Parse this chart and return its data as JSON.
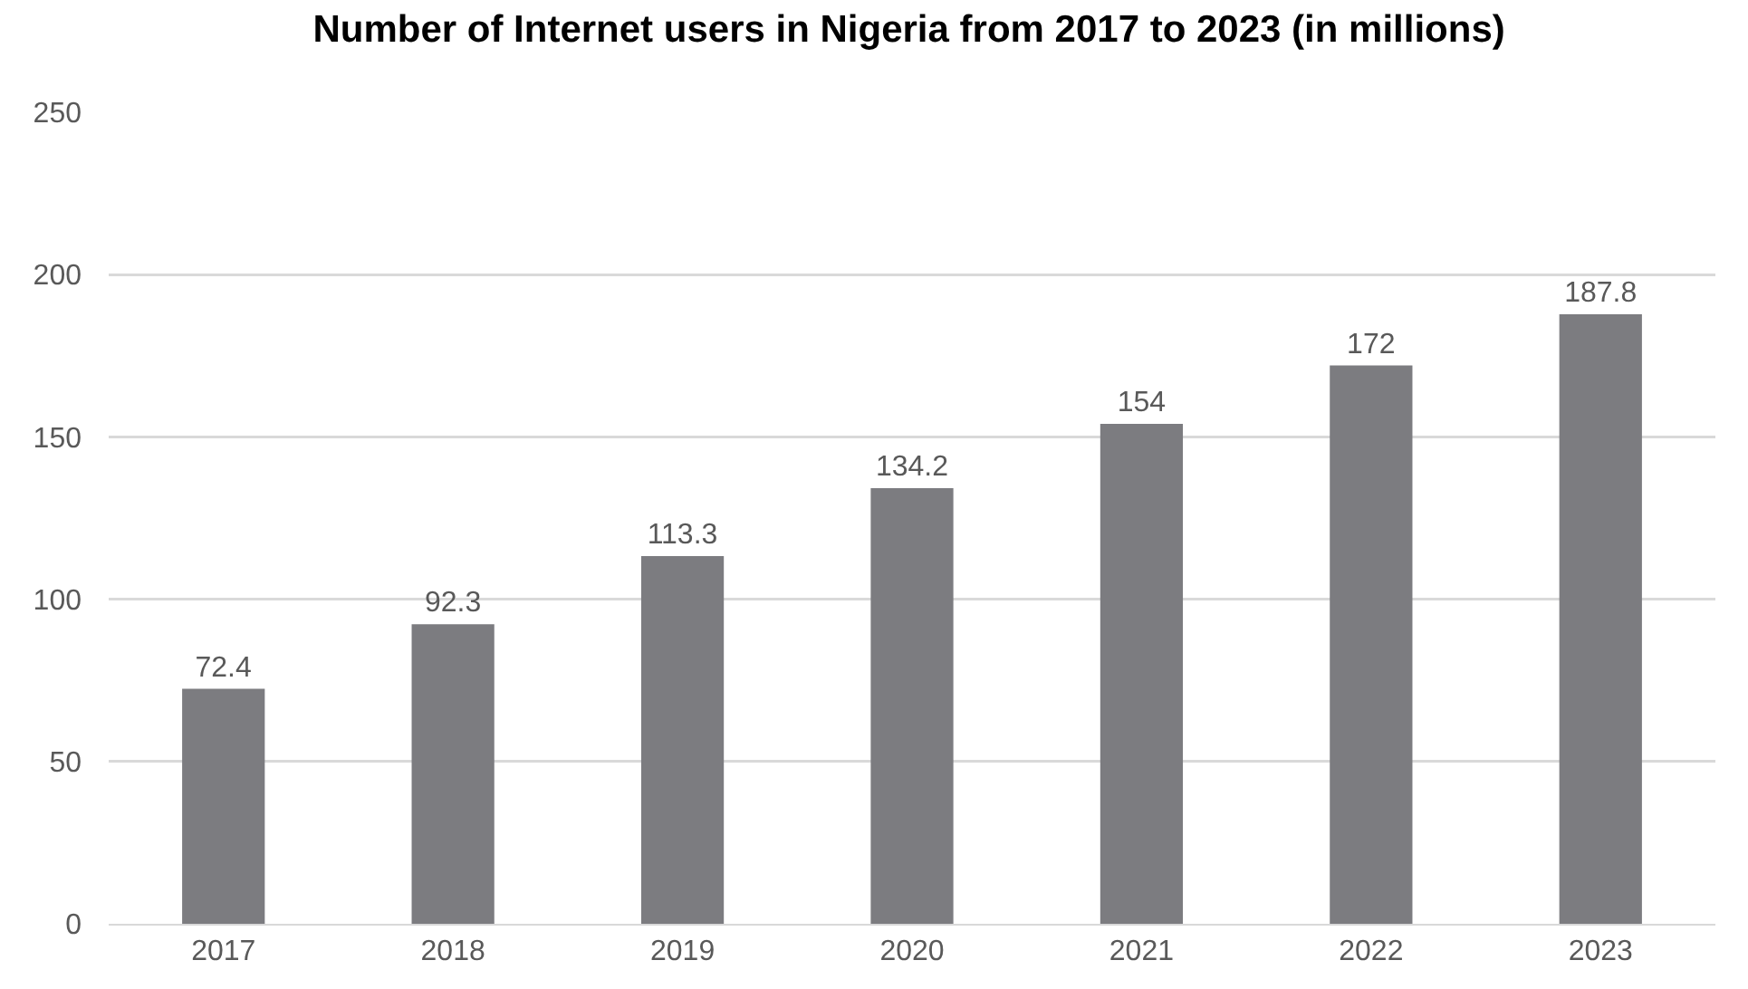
{
  "chart_data": {
    "type": "bar",
    "title": "Number of Internet users in Nigeria from 2017 to 2023 (in millions)",
    "categories": [
      "2017",
      "2018",
      "2019",
      "2020",
      "2021",
      "2022",
      "2023"
    ],
    "values": [
      72.4,
      92.3,
      113.3,
      134.2,
      154,
      172,
      187.8
    ],
    "color": "#7c7c80",
    "ylim": [
      0,
      250
    ],
    "yticks": [
      0,
      50,
      100,
      150,
      200,
      250
    ],
    "grid": "y",
    "data_labels": true
  }
}
